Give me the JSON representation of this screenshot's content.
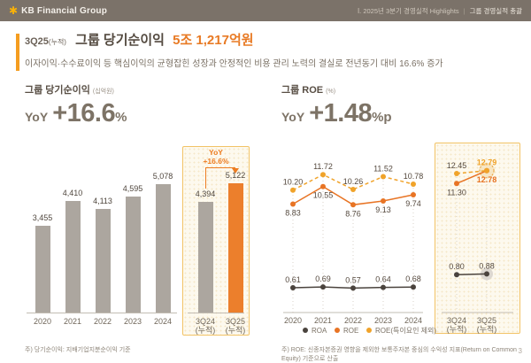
{
  "header": {
    "logo_text": "KB Financial Group",
    "nav_left": "Ⅰ. 2025년 3분기 경영실적 Highlights",
    "nav_sep": "|",
    "nav_right": "그룹 경영실적 총괄"
  },
  "title": {
    "prefix": "3Q25",
    "prefix_sub": "(누적)",
    "main": "그룹 당기순이익",
    "highlight": "5조 1,217억원",
    "subtitle": "이자이익·수수료이익 등 핵심이익의 균형잡힌 성장과 안정적인 비용 관리 노력의 결실로 전년동기 대비 16.6% 증가"
  },
  "left_panel": {
    "title": "그룹 당기순이익",
    "unit": "(십억원)",
    "yoy_label": "YoY",
    "yoy_value": "+16.6",
    "yoy_unit": "%",
    "callout_label": "YoY",
    "callout_value": "+16.6%"
  },
  "right_panel": {
    "title": "그룹 ROE",
    "unit": "(%)",
    "yoy_label": "YoY",
    "yoy_value": "+1.48",
    "yoy_unit": "%p"
  },
  "footer": {
    "note_left": "주) 당기순이익: 지배기업지분순이익 기준",
    "note_right": "주) ROE: 신종자본증권 영향을 제외한 보통주자본 중심의 수익성 지표(Return on Common Equity) 기준으로 산출",
    "page": "3"
  },
  "colors": {
    "header_bg": "#7b7269",
    "accent_orange": "#ed7d22",
    "bar_gray": "#aca69f",
    "bar_orange": "#ec7f2c",
    "box_border": "#f2c366",
    "box_bg": "#fdf9ee",
    "roa": "#4a433d",
    "roe": "#e87424",
    "roe_ex": "#f0a32a"
  },
  "chart_data": [
    {
      "type": "bar",
      "title": "그룹 당기순이익",
      "unit": "십억원",
      "categories": [
        "2020",
        "2021",
        "2022",
        "2023",
        "2024"
      ],
      "values": [
        3455,
        4410,
        4113,
        4595,
        5078
      ],
      "highlight_categories": [
        "3Q24\n(누적)",
        "3Q25\n(누적)"
      ],
      "highlight_values": [
        4394,
        5122
      ],
      "highlight_colors": [
        "#aca69f",
        "#ec7f2c"
      ],
      "bar_color": "#aca69f",
      "annotation": "YoY +16.6%",
      "ylim": [
        0,
        5500
      ],
      "grid": false
    },
    {
      "type": "line",
      "title": "그룹 ROE",
      "unit": "%",
      "categories": [
        "2020",
        "2021",
        "2022",
        "2023",
        "2024"
      ],
      "highlight_categories": [
        "3Q24\n(누적)",
        "3Q25\n(누적)"
      ],
      "series": [
        {
          "name": "ROA",
          "values": [
            0.61,
            0.69,
            0.57,
            0.64,
            0.68
          ],
          "highlight_values": [
            0.8,
            0.88
          ],
          "color": "#4a433d",
          "dash": false,
          "label_pos": "above",
          "highlight_label_color": null
        },
        {
          "name": "ROE",
          "values": [
            8.83,
            10.55,
            8.76,
            9.13,
            9.74
          ],
          "highlight_values": [
            11.3,
            12.78
          ],
          "color": "#e87424",
          "dash": false,
          "label_pos": "below",
          "highlight_label_color": "#e87424"
        },
        {
          "name": "ROE(특이요인 제외)",
          "values": [
            10.2,
            11.72,
            10.26,
            11.52,
            10.78
          ],
          "highlight_values": [
            12.45,
            12.79
          ],
          "color": "#f0a32a",
          "dash": true,
          "label_pos": "above",
          "highlight_label_color": "#f0a32a"
        }
      ],
      "legend": [
        "ROA",
        "ROE",
        "ROE(특이요인 제외)"
      ],
      "ylim": [
        0,
        14
      ],
      "legend_position": "bottom",
      "grid": false
    }
  ]
}
